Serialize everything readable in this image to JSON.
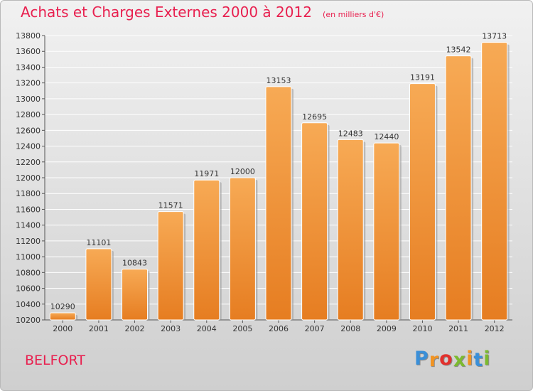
{
  "header": {
    "title": "Achats et Charges Externes 2000 à 2012",
    "subtitle": "(en milliers d'€)"
  },
  "location": {
    "name": "BELFORT"
  },
  "brand": {
    "name": "Proxiti",
    "letters": [
      "P",
      "r",
      "o",
      "x",
      "i",
      "t",
      "i"
    ],
    "letter_colors": [
      "#3a8fd8",
      "#f29422",
      "#e2312d",
      "#7cba2f",
      "#f29422",
      "#3a8fd8",
      "#7cba2f"
    ]
  },
  "colors": {
    "title": "#e8204f",
    "bar_top": "#f7aa55",
    "bar_bottom": "#e67d21",
    "bar_shadow": "#9d9d9d",
    "grid": "#ffffff"
  },
  "chart_data": {
    "type": "bar",
    "title": "Achats et Charges Externes 2000 à 2012",
    "subtitle": "(en milliers d'€)",
    "categories": [
      "2000",
      "2001",
      "2002",
      "2003",
      "2004",
      "2005",
      "2006",
      "2007",
      "2008",
      "2009",
      "2010",
      "2011",
      "2012"
    ],
    "values": [
      10290,
      11101,
      10843,
      11571,
      11971,
      12000,
      13153,
      12695,
      12483,
      12440,
      13191,
      13542,
      13713
    ],
    "ylim": [
      10200,
      13800
    ],
    "yticks": [
      10200,
      10400,
      10600,
      10800,
      11000,
      11200,
      11400,
      11600,
      11800,
      12000,
      12200,
      12400,
      12600,
      12800,
      13000,
      13200,
      13400,
      13600,
      13800
    ],
    "grid": true,
    "data_labels": true
  }
}
